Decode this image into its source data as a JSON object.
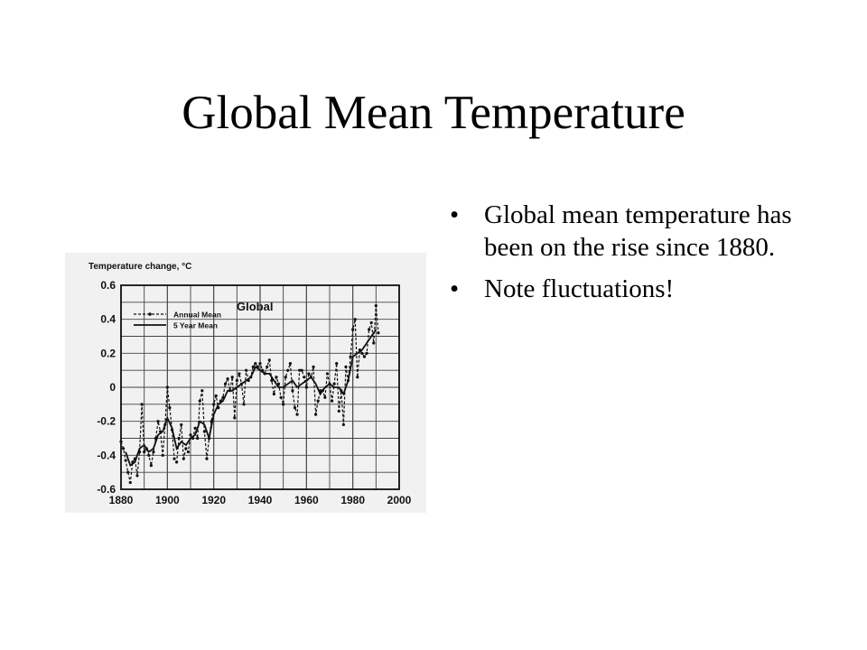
{
  "slide": {
    "title": "Global Mean Temperature",
    "bullets": [
      "Global mean temperature has been on the rise since 1880.",
      "Note fluctuations!"
    ],
    "bullet_glyph": "•"
  },
  "chart_data": {
    "type": "line",
    "title": "Global",
    "ylabel": "Temperature change, °C",
    "xlabel": "",
    "xlim": [
      1880,
      2000
    ],
    "ylim": [
      -0.6,
      0.6
    ],
    "x_ticks": [
      1880,
      1900,
      1920,
      1940,
      1960,
      1980,
      2000
    ],
    "y_ticks": [
      0.6,
      0.4,
      0.2,
      0,
      -0.2,
      -0.4,
      -0.6
    ],
    "y_tick_labels": [
      "0.6",
      "0.4",
      "0.2",
      "0",
      "-0.2",
      "-0.4",
      "-0.6"
    ],
    "grid": true,
    "legend_position": "top-left",
    "series": [
      {
        "name": "Annual Mean",
        "style": "dashed-with-markers",
        "x": [
          1880,
          1881,
          1882,
          1883,
          1884,
          1885,
          1886,
          1887,
          1888,
          1889,
          1890,
          1891,
          1892,
          1893,
          1894,
          1895,
          1896,
          1897,
          1898,
          1899,
          1900,
          1901,
          1902,
          1903,
          1904,
          1905,
          1906,
          1907,
          1908,
          1909,
          1910,
          1911,
          1912,
          1913,
          1914,
          1915,
          1916,
          1917,
          1918,
          1919,
          1920,
          1921,
          1922,
          1923,
          1924,
          1925,
          1926,
          1927,
          1928,
          1929,
          1930,
          1931,
          1932,
          1933,
          1934,
          1935,
          1936,
          1937,
          1938,
          1939,
          1940,
          1941,
          1942,
          1943,
          1944,
          1945,
          1946,
          1947,
          1948,
          1949,
          1950,
          1951,
          1952,
          1953,
          1954,
          1955,
          1956,
          1957,
          1958,
          1959,
          1960,
          1961,
          1962,
          1963,
          1964,
          1965,
          1966,
          1967,
          1968,
          1969,
          1970,
          1971,
          1972,
          1973,
          1974,
          1975,
          1976,
          1977,
          1978,
          1979,
          1980,
          1981,
          1982,
          1983,
          1984,
          1985,
          1986,
          1987,
          1988,
          1989,
          1990,
          1991
        ],
        "y": [
          -0.32,
          -0.36,
          -0.43,
          -0.5,
          -0.56,
          -0.44,
          -0.42,
          -0.52,
          -0.38,
          -0.1,
          -0.38,
          -0.36,
          -0.4,
          -0.46,
          -0.38,
          -0.3,
          -0.2,
          -0.26,
          -0.4,
          -0.22,
          0.0,
          -0.12,
          -0.25,
          -0.42,
          -0.44,
          -0.3,
          -0.22,
          -0.42,
          -0.36,
          -0.38,
          -0.28,
          -0.3,
          -0.24,
          -0.3,
          -0.08,
          -0.02,
          -0.26,
          -0.42,
          -0.3,
          -0.2,
          -0.1,
          -0.05,
          -0.12,
          -0.08,
          -0.06,
          0.02,
          0.05,
          -0.02,
          0.06,
          -0.18,
          0.04,
          0.08,
          0.02,
          -0.1,
          0.1,
          0.04,
          0.06,
          0.12,
          0.14,
          0.12,
          0.14,
          0.1,
          0.08,
          0.12,
          0.16,
          0.04,
          -0.04,
          0.06,
          0.02,
          -0.06,
          -0.1,
          0.06,
          0.1,
          0.14,
          -0.02,
          -0.12,
          -0.16,
          0.1,
          0.1,
          0.06,
          0.0,
          0.08,
          0.06,
          0.12,
          -0.16,
          -0.08,
          -0.02,
          -0.02,
          -0.06,
          0.08,
          0.02,
          -0.08,
          0.02,
          0.14,
          -0.14,
          -0.02,
          -0.22,
          0.12,
          0.04,
          0.18,
          0.34,
          0.4,
          0.06,
          0.22,
          0.2,
          0.18,
          0.2,
          0.34,
          0.38,
          0.26,
          0.48,
          0.32
        ]
      },
      {
        "name": "5 Year Mean",
        "style": "solid",
        "x": [
          1882,
          1884,
          1886,
          1888,
          1890,
          1892,
          1894,
          1896,
          1898,
          1900,
          1902,
          1904,
          1906,
          1908,
          1910,
          1912,
          1914,
          1916,
          1918,
          1920,
          1922,
          1924,
          1926,
          1928,
          1930,
          1932,
          1934,
          1936,
          1938,
          1940,
          1942,
          1944,
          1946,
          1948,
          1950,
          1952,
          1954,
          1956,
          1958,
          1960,
          1962,
          1964,
          1966,
          1968,
          1970,
          1972,
          1974,
          1976,
          1978,
          1980,
          1982,
          1984,
          1986,
          1988,
          1990
        ],
        "y": [
          -0.38,
          -0.46,
          -0.44,
          -0.36,
          -0.34,
          -0.38,
          -0.36,
          -0.28,
          -0.26,
          -0.18,
          -0.24,
          -0.36,
          -0.32,
          -0.34,
          -0.3,
          -0.28,
          -0.2,
          -0.22,
          -0.3,
          -0.16,
          -0.1,
          -0.08,
          -0.02,
          -0.02,
          0.0,
          0.02,
          0.04,
          0.06,
          0.12,
          0.1,
          0.08,
          0.08,
          0.04,
          0.0,
          0.0,
          0.02,
          0.04,
          0.0,
          0.02,
          0.04,
          0.06,
          0.02,
          -0.04,
          0.0,
          0.02,
          0.0,
          0.0,
          -0.04,
          0.04,
          0.18,
          0.2,
          0.22,
          0.26,
          0.3,
          0.34
        ]
      }
    ]
  }
}
